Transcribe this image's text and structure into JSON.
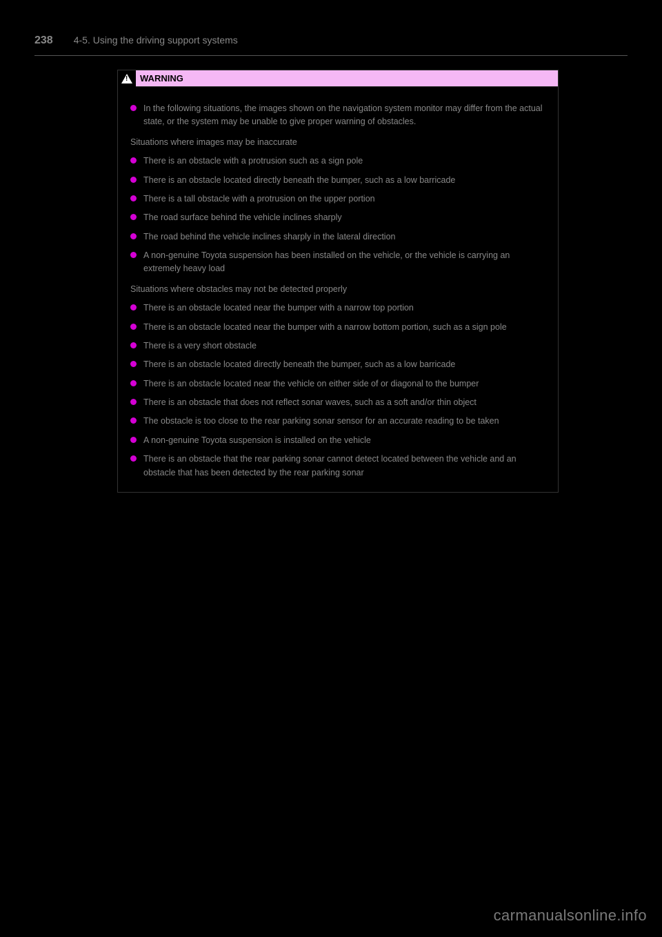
{
  "header": {
    "page_number": "238",
    "section": "4-5. Using the driving support systems"
  },
  "warning": {
    "label": "WARNING",
    "intro1": "In the following situations, the images shown on the navigation system monitor may differ from the actual state, or the system may be unable to give proper warning of obstacles.",
    "subhead_inaccurate": "Situations where images may be inaccurate",
    "bullets_inaccurate": [
      "There is an obstacle with a protrusion such as a sign pole",
      "There is an obstacle located directly beneath the bumper, such as a low barricade",
      "There is a tall obstacle with a protrusion on the upper portion",
      "The road surface behind the vehicle inclines sharply",
      "The road behind the vehicle inclines sharply in the lateral direction",
      "A non-genuine Toyota suspension has been installed on the vehicle, or the vehicle is carrying an extremely heavy load"
    ],
    "subhead_undetect": "Situations where obstacles may not be detected properly",
    "bullets_undetect": [
      "There is an obstacle located near the bumper with a narrow top portion",
      "There is an obstacle located near the bumper with a narrow bottom portion, such as a sign pole",
      "There is a very short obstacle",
      "There is an obstacle located directly beneath the bumper, such as a low barricade",
      "There is an obstacle located near the vehicle on either side of or diagonal to the bumper",
      "There is an obstacle that does not reflect sonar waves, such as a soft and/or thin object",
      "The obstacle is too close to the rear parking sonar sensor for an accurate reading to be taken",
      "A non-genuine Toyota suspension is installed on the vehicle",
      "There is an obstacle that the rear parking sonar cannot detect located between the vehicle and an obstacle that has been detected by the rear parking sonar"
    ]
  },
  "watermark": "carmanualsonline.info",
  "colors": {
    "page_bg": "#000000",
    "body_text": "#888888",
    "bullet": "#d400d4",
    "warning_header_bg": "#f5b8f5",
    "divider": "#555555"
  }
}
